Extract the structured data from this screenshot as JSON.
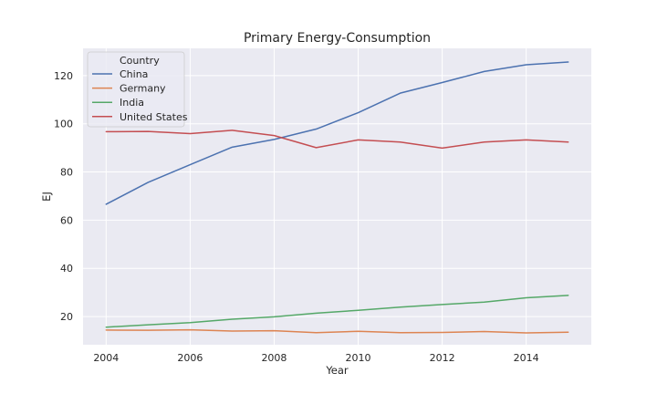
{
  "chart_data": {
    "type": "line",
    "title": "Primary Energy-Consumption",
    "xlabel": "Year",
    "ylabel": "EJ",
    "xlim": [
      2003.45,
      2015.55
    ],
    "ylim": [
      8.3,
      131.3
    ],
    "x_ticks": [
      2004,
      2006,
      2008,
      2010,
      2012,
      2014
    ],
    "y_ticks": [
      20,
      40,
      60,
      80,
      100,
      120
    ],
    "grid": true,
    "legend": {
      "title": "Country",
      "position": "top-left"
    },
    "x": [
      2004,
      2005,
      2006,
      2007,
      2008,
      2009,
      2010,
      2011,
      2012,
      2013,
      2014,
      2015
    ],
    "series": [
      {
        "name": "China",
        "color": "#4c72b0",
        "values": [
          66.6,
          75.7,
          83.0,
          90.3,
          93.5,
          97.8,
          104.6,
          112.7,
          117.1,
          121.7,
          124.5,
          125.6
        ]
      },
      {
        "name": "Germany",
        "color": "#dd8452",
        "values": [
          14.4,
          14.3,
          14.5,
          14.0,
          14.1,
          13.3,
          13.9,
          13.3,
          13.4,
          13.8,
          13.2,
          13.5
        ]
      },
      {
        "name": "India",
        "color": "#55a868",
        "values": [
          15.6,
          16.6,
          17.5,
          18.9,
          19.9,
          21.4,
          22.6,
          23.9,
          25.0,
          26.0,
          27.8,
          28.8
        ]
      },
      {
        "name": "United States",
        "color": "#c44e52",
        "values": [
          96.7,
          96.8,
          95.9,
          97.3,
          95.1,
          90.1,
          93.3,
          92.4,
          89.9,
          92.4,
          93.3,
          92.4
        ]
      }
    ]
  }
}
